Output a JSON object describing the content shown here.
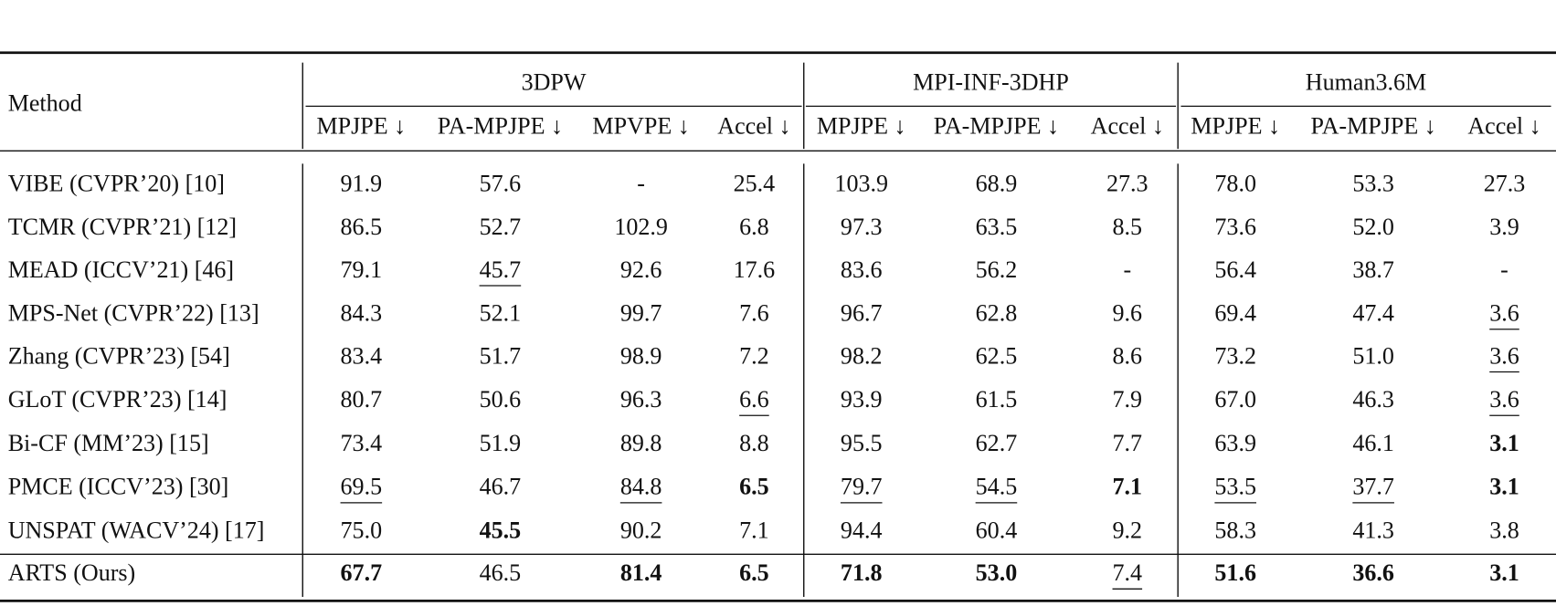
{
  "table": {
    "header": {
      "method": "Method",
      "groups": [
        {
          "name": "3DPW",
          "columns": [
            "MPJPE ↓",
            "PA-MPJPE ↓",
            "MPVPE ↓",
            "Accel ↓"
          ]
        },
        {
          "name": "MPI-INF-3DHP",
          "columns": [
            "MPJPE ↓",
            "PA-MPJPE ↓",
            "Accel ↓"
          ]
        },
        {
          "name": "Human3.6M",
          "columns": [
            "MPJPE ↓",
            "PA-MPJPE ↓",
            "Accel ↓"
          ]
        }
      ]
    },
    "rows": [
      {
        "method": "VIBE (CVPR’20) [10]",
        "values": [
          "91.9",
          "57.6",
          "-",
          "25.4",
          "103.9",
          "68.9",
          "27.3",
          "78.0",
          "53.3",
          "27.3"
        ]
      },
      {
        "method": "TCMR (CVPR’21) [12]",
        "values": [
          "86.5",
          "52.7",
          "102.9",
          "6.8",
          "97.3",
          "63.5",
          "8.5",
          "73.6",
          "52.0",
          "3.9"
        ]
      },
      {
        "method": "MEAD (ICCV’21) [46]",
        "values": [
          "79.1",
          {
            "text": "45.7",
            "underline": true
          },
          "92.6",
          "17.6",
          "83.6",
          "56.2",
          "-",
          "56.4",
          "38.7",
          "-"
        ]
      },
      {
        "method": "MPS-Net (CVPR’22) [13]",
        "values": [
          "84.3",
          "52.1",
          "99.7",
          "7.6",
          "96.7",
          "62.8",
          "9.6",
          "69.4",
          "47.4",
          {
            "text": "3.6",
            "underline": true
          }
        ]
      },
      {
        "method": "Zhang (CVPR’23) [54]",
        "values": [
          "83.4",
          "51.7",
          "98.9",
          "7.2",
          "98.2",
          "62.5",
          "8.6",
          "73.2",
          "51.0",
          {
            "text": "3.6",
            "underline": true
          }
        ]
      },
      {
        "method": "GLoT (CVPR’23) [14]",
        "values": [
          "80.7",
          "50.6",
          "96.3",
          {
            "text": "6.6",
            "underline": true
          },
          "93.9",
          "61.5",
          "7.9",
          "67.0",
          "46.3",
          {
            "text": "3.6",
            "underline": true
          }
        ]
      },
      {
        "method": "Bi-CF (MM’23) [15]",
        "values": [
          "73.4",
          "51.9",
          "89.8",
          "8.8",
          "95.5",
          "62.7",
          "7.7",
          "63.9",
          "46.1",
          {
            "text": "3.1",
            "bold": true
          }
        ]
      },
      {
        "method": "PMCE (ICCV’23) [30]",
        "values": [
          {
            "text": "69.5",
            "underline": true
          },
          "46.7",
          {
            "text": "84.8",
            "underline": true
          },
          {
            "text": "6.5",
            "bold": true
          },
          {
            "text": "79.7",
            "underline": true
          },
          {
            "text": "54.5",
            "underline": true
          },
          {
            "text": "7.1",
            "bold": true
          },
          {
            "text": "53.5",
            "underline": true
          },
          {
            "text": "37.7",
            "underline": true
          },
          {
            "text": "3.1",
            "bold": true
          }
        ]
      },
      {
        "method": "UNSPAT (WACV’24) [17]",
        "values": [
          "75.0",
          {
            "text": "45.5",
            "bold": true
          },
          "90.2",
          "7.1",
          "94.4",
          "60.4",
          "9.2",
          "58.3",
          "41.3",
          "3.8"
        ]
      },
      {
        "method": "ARTS (Ours)",
        "values": [
          {
            "text": "67.7",
            "bold": true
          },
          "46.5",
          {
            "text": "81.4",
            "bold": true
          },
          {
            "text": "6.5",
            "bold": true
          },
          {
            "text": "71.8",
            "bold": true
          },
          {
            "text": "53.0",
            "bold": true
          },
          {
            "text": "7.4",
            "underline": true
          },
          {
            "text": "51.6",
            "bold": true
          },
          {
            "text": "36.6",
            "bold": true
          },
          {
            "text": "3.1",
            "bold": true
          }
        ]
      }
    ]
  }
}
